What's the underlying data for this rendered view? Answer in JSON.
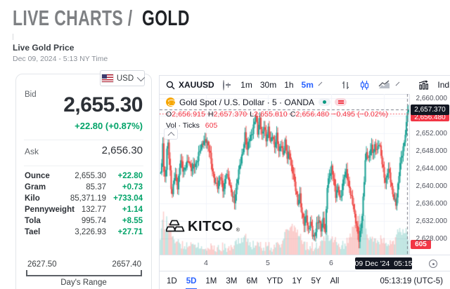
{
  "header": {
    "breadcrumb_primary": "LIVE CHARTS /",
    "breadcrumb_current": "GOLD"
  },
  "price_panel": {
    "title": "Live Gold Price",
    "timestamp": "Dec 09, 2024 - 5:13 NY Time",
    "currency": "USD",
    "bid_label": "Bid",
    "bid_value": "2,655.30",
    "bid_change": "+22.80 (+0.87%)",
    "ask_label": "Ask",
    "ask_value": "2,656.30",
    "units": [
      {
        "label": "Ounce",
        "value": "2,655.30",
        "change": "+22.80"
      },
      {
        "label": "Gram",
        "value": "85.37",
        "change": "+0.73"
      },
      {
        "label": "Kilo",
        "value": "85,371.19",
        "change": "+733.04"
      },
      {
        "label": "Pennyweight",
        "value": "132.77",
        "change": "+1.14"
      },
      {
        "label": "Tola",
        "value": "995.74",
        "change": "+8.55"
      },
      {
        "label": "Tael",
        "value": "3,226.93",
        "change": "+27.71"
      }
    ],
    "days_range": {
      "low": "2627.50",
      "high": "2657.40",
      "label": "Day's Range"
    }
  },
  "chart": {
    "toolbar": {
      "symbol": "XAUUSD",
      "intervals": [
        "1m",
        "30m",
        "1h",
        "5m"
      ],
      "active_interval": "5m",
      "indicators_label": "Indicators"
    },
    "legend": {
      "title": "Gold Spot / U.S. Dollar · 5 · OANDA",
      "ohlc": [
        {
          "k": "O",
          "v": "2,656.915"
        },
        {
          "k": "H",
          "v": "2,657.370"
        },
        {
          "k": "L",
          "v": "2,655.810"
        },
        {
          "k": "C",
          "v": "2,656.480"
        },
        {
          "k": "",
          "v": "−0.495 (−0.02%)"
        }
      ],
      "vol_label": "Vol · Ticks",
      "vol_value": "605"
    },
    "price_axis": {
      "ticks": [
        "2,660.000",
        "2,652.000",
        "2,648.000",
        "2,644.000",
        "2,640.000",
        "2,636.000",
        "2,632.000",
        "2,628.000"
      ],
      "crosshair_badge": "2,657.370",
      "last_price_badge": "2,656.480",
      "vol_badge": "605"
    },
    "time_axis": {
      "labels": [
        "4",
        "5",
        "6"
      ],
      "crosshair_badge": "09 Dec '24  05:15"
    },
    "bottom_toolbar": {
      "ranges": [
        "1D",
        "5D",
        "1M",
        "3M",
        "6M",
        "YTD",
        "1Y",
        "5Y",
        "All"
      ],
      "active_range": "5D",
      "clock": "05:13:19 (UTC-5)"
    },
    "watermark": "KITCO"
  },
  "colors": {
    "up": "#26a69a",
    "down": "#ef5350",
    "value_red": "#f23645",
    "accent_blue": "#2962ff",
    "panel_green": "#00a368",
    "badge_dark": "#131722"
  },
  "chart_data": {
    "type": "candlestick",
    "symbol": "XAUUSD",
    "interval_minutes": 5,
    "title": "Gold Spot / U.S. Dollar · 5 · OANDA",
    "ohlc_current": {
      "open": 2656.915,
      "high": 2657.37,
      "low": 2655.81,
      "close": 2656.48,
      "change": -0.495,
      "change_pct": -0.02
    },
    "volume_ticks": 605,
    "ylim": [
      2626.4,
      2661.1
    ],
    "y_gridlines": [
      2660,
      2656,
      2652,
      2648,
      2644,
      2640,
      2636,
      2632,
      2628
    ],
    "x_labels": [
      "4",
      "5",
      "6",
      "09 Dec '24 05:15"
    ],
    "day_low": 2627.5,
    "day_high": 2657.4,
    "last": 2656.48,
    "crosshair_price": 2657.37,
    "price_path": [
      [
        2,
        2643
      ],
      [
        4,
        2650
      ],
      [
        6,
        2640
      ],
      [
        9,
        2645
      ],
      [
        11,
        2652
      ],
      [
        14,
        2644
      ],
      [
        17,
        2637
      ],
      [
        21,
        2643
      ],
      [
        25,
        2640
      ],
      [
        29,
        2646
      ],
      [
        33,
        2643
      ],
      [
        37,
        2645
      ],
      [
        41,
        2646
      ],
      [
        45,
        2643
      ],
      [
        49,
        2645
      ],
      [
        53,
        2646
      ],
      [
        57,
        2648
      ],
      [
        62,
        2650
      ],
      [
        66,
        2651
      ],
      [
        70,
        2648
      ],
      [
        74,
        2644
      ],
      [
        78,
        2641
      ],
      [
        82,
        2640
      ],
      [
        86,
        2642
      ],
      [
        90,
        2639
      ],
      [
        94,
        2643
      ],
      [
        98,
        2641
      ],
      [
        102,
        2638
      ],
      [
        106,
        2637
      ],
      [
        110,
        2641
      ],
      [
        114,
        2645
      ],
      [
        118,
        2648
      ],
      [
        121,
        2652
      ],
      [
        124,
        2648
      ],
      [
        128,
        2651
      ],
      [
        132,
        2653
      ],
      [
        136,
        2656
      ],
      [
        139,
        2652
      ],
      [
        142,
        2655
      ],
      [
        145,
        2652
      ],
      [
        148,
        2654
      ],
      [
        151,
        2650
      ],
      [
        154,
        2653
      ],
      [
        157,
        2650
      ],
      [
        160,
        2652
      ],
      [
        163,
        2649
      ],
      [
        166,
        2651
      ],
      [
        169,
        2648
      ],
      [
        172,
        2650
      ],
      [
        175,
        2647
      ],
      [
        178,
        2650
      ],
      [
        181,
        2646
      ],
      [
        184,
        2648
      ],
      [
        187,
        2645
      ],
      [
        190,
        2642
      ],
      [
        193,
        2639
      ],
      [
        196,
        2636
      ],
      [
        199,
        2638
      ],
      [
        202,
        2634
      ],
      [
        205,
        2631
      ],
      [
        208,
        2633
      ],
      [
        211,
        2630
      ],
      [
        214,
        2632
      ],
      [
        217,
        2629
      ],
      [
        220,
        2628
      ],
      [
        223,
        2631
      ],
      [
        226,
        2633
      ],
      [
        229,
        2630
      ],
      [
        232,
        2632
      ],
      [
        235,
        2629
      ],
      [
        238,
        2640
      ],
      [
        241,
        2643
      ],
      [
        244,
        2644
      ],
      [
        247,
        2641
      ],
      [
        250,
        2638
      ],
      [
        253,
        2640
      ],
      [
        256,
        2637
      ],
      [
        259,
        2639
      ],
      [
        262,
        2642
      ],
      [
        265,
        2644
      ],
      [
        268,
        2641
      ],
      [
        271,
        2638
      ],
      [
        274,
        2636
      ],
      [
        277,
        2633
      ],
      [
        280,
        2631
      ],
      [
        283,
        2628
      ],
      [
        286,
        2630
      ],
      [
        288,
        2634
      ],
      [
        290,
        2640
      ],
      [
        292,
        2646
      ],
      [
        294,
        2648
      ],
      [
        297,
        2646
      ],
      [
        300,
        2649
      ],
      [
        303,
        2647
      ],
      [
        306,
        2650
      ],
      [
        309,
        2648
      ],
      [
        312,
        2650
      ],
      [
        315,
        2646
      ],
      [
        318,
        2643
      ],
      [
        321,
        2641
      ],
      [
        324,
        2644
      ],
      [
        327,
        2642
      ],
      [
        330,
        2639
      ],
      [
        333,
        2637
      ],
      [
        336,
        2636
      ],
      [
        339,
        2641
      ],
      [
        342,
        2645
      ],
      [
        345,
        2648
      ],
      [
        348,
        2651
      ],
      [
        350,
        2653
      ],
      [
        351,
        2655
      ],
      [
        352,
        2657.2
      ]
    ],
    "volume_clusters": [
      [
        8,
        26
      ],
      [
        45,
        7
      ],
      [
        120,
        11
      ],
      [
        188,
        30
      ],
      [
        240,
        13
      ],
      [
        283,
        42
      ],
      [
        310,
        12
      ],
      [
        345,
        22
      ]
    ],
    "day_gridline_x": [
      66,
      154,
      244,
      319
    ]
  }
}
